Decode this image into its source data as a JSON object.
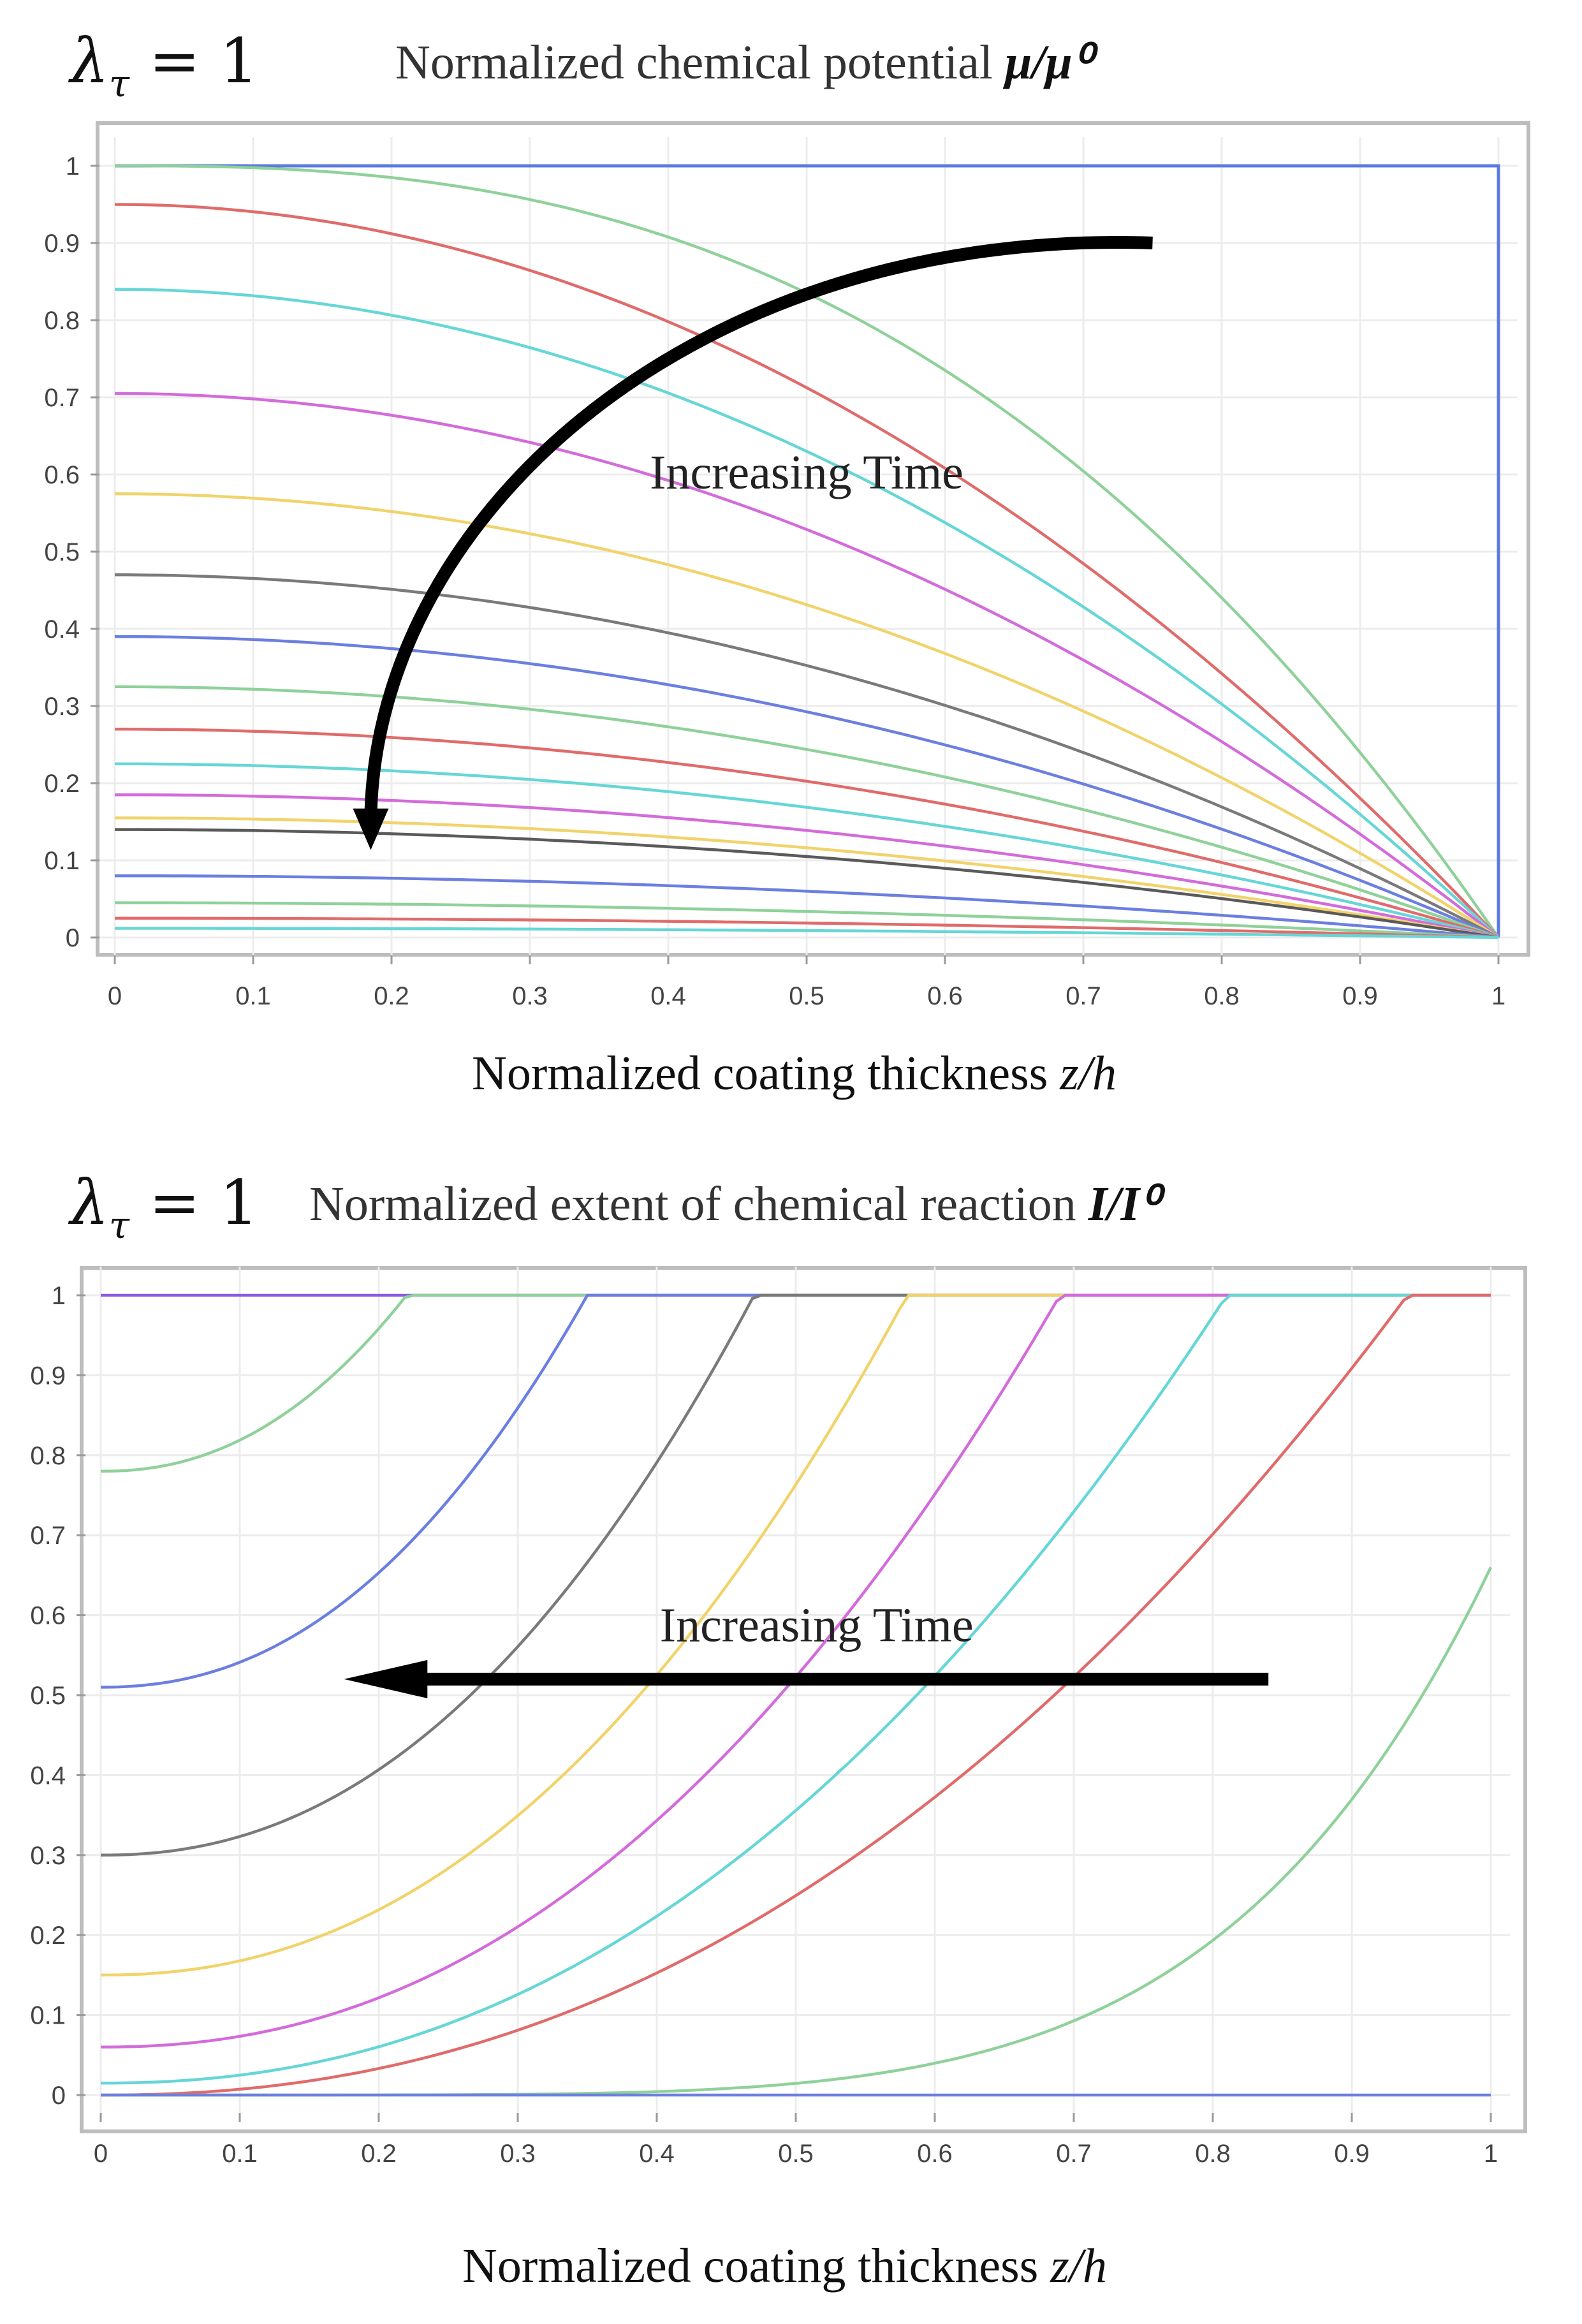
{
  "chart_data": [
    {
      "type": "line",
      "header": {
        "lambda_symbol": "λ",
        "lambda_subscript": "τ",
        "lambda_eq": "= 1"
      },
      "title_prefix": "Normalized chemical potential ",
      "title_symbol": "μ/μ⁰",
      "xlabel_prefix": "Normalized coating thickness ",
      "xlabel_symbol": "z/h",
      "ylabel": "",
      "xlim": [
        0,
        1
      ],
      "ylim": [
        0,
        1
      ],
      "xticks": [
        "0",
        "0.1",
        "0.2",
        "0.3",
        "0.4",
        "0.5",
        "0.6",
        "0.7",
        "0.8",
        "0.9",
        "1"
      ],
      "yticks": [
        "0",
        "0.1",
        "0.2",
        "0.3",
        "0.4",
        "0.5",
        "0.6",
        "0.7",
        "0.8",
        "0.9",
        "1"
      ],
      "grid": true,
      "annotation": "Increasing Time",
      "profile_shape": "mu(z) = mu(0) * (1 - z^2) for later curves; early curves are flat near z=0 and drop to 0 at z=1",
      "series": [
        {
          "name": "t0",
          "color": "#5b7be0",
          "start_value": 1.0,
          "end_value": 0.0,
          "kind": "step"
        },
        {
          "name": "t1",
          "color": "#8fd19a",
          "start_value": 1.0,
          "end_value": 0.0,
          "kind": "sharp"
        },
        {
          "name": "t2",
          "color": "#e06b6b",
          "start_value": 0.95,
          "end_value": 0.0,
          "kind": "parabolic"
        },
        {
          "name": "t3",
          "color": "#66d6d6",
          "start_value": 0.84,
          "end_value": 0.0,
          "kind": "parabolic"
        },
        {
          "name": "t4",
          "color": "#d36bdb",
          "start_value": 0.705,
          "end_value": 0.0,
          "kind": "parabolic"
        },
        {
          "name": "t5",
          "color": "#f1d36b",
          "start_value": 0.575,
          "end_value": 0.0,
          "kind": "parabolic"
        },
        {
          "name": "t6",
          "color": "#7a7a7a",
          "start_value": 0.47,
          "end_value": 0.0,
          "kind": "parabolic"
        },
        {
          "name": "t7",
          "color": "#6b7fe0",
          "start_value": 0.39,
          "end_value": 0.0,
          "kind": "parabolic"
        },
        {
          "name": "t8",
          "color": "#8fd19a",
          "start_value": 0.325,
          "end_value": 0.0,
          "kind": "parabolic"
        },
        {
          "name": "t9",
          "color": "#e06b6b",
          "start_value": 0.27,
          "end_value": 0.0,
          "kind": "parabolic"
        },
        {
          "name": "t10",
          "color": "#66d6d6",
          "start_value": 0.225,
          "end_value": 0.0,
          "kind": "parabolic"
        },
        {
          "name": "t11",
          "color": "#d36bdb",
          "start_value": 0.185,
          "end_value": 0.0,
          "kind": "parabolic"
        },
        {
          "name": "t12",
          "color": "#f1d36b",
          "start_value": 0.155,
          "end_value": 0.0,
          "kind": "parabolic"
        },
        {
          "name": "t13",
          "color": "#5a5a5a",
          "start_value": 0.14,
          "end_value": 0.0,
          "kind": "parabolic"
        },
        {
          "name": "t14",
          "color": "#6b7fe0",
          "start_value": 0.08,
          "end_value": 0.0,
          "kind": "parabolic"
        },
        {
          "name": "t15",
          "color": "#8fd19a",
          "start_value": 0.045,
          "end_value": 0.0,
          "kind": "parabolic"
        },
        {
          "name": "t16",
          "color": "#e06b6b",
          "start_value": 0.025,
          "end_value": 0.0,
          "kind": "parabolic"
        },
        {
          "name": "t17",
          "color": "#66d6d6",
          "start_value": 0.012,
          "end_value": 0.0,
          "kind": "parabolic"
        }
      ]
    },
    {
      "type": "line",
      "header": {
        "lambda_symbol": "λ",
        "lambda_subscript": "τ",
        "lambda_eq": "= 1"
      },
      "title_prefix": "Normalized extent of chemical reaction ",
      "title_symbol": "I/I⁰",
      "xlabel_prefix": "Normalized coating thickness ",
      "xlabel_symbol": "z/h",
      "ylabel": "",
      "xlim": [
        0,
        1
      ],
      "ylim": [
        0,
        1
      ],
      "xticks": [
        "0",
        "0.1",
        "0.2",
        "0.3",
        "0.4",
        "0.5",
        "0.6",
        "0.7",
        "0.8",
        "0.9",
        "1"
      ],
      "yticks": [
        "0",
        "0.1",
        "0.2",
        "0.3",
        "0.4",
        "0.5",
        "0.6",
        "0.7",
        "0.8",
        "0.9",
        "1"
      ],
      "grid": true,
      "annotation": "Increasing Time",
      "series": [
        {
          "name": "r0",
          "color": "#8a5be0",
          "flat_value": 1.0,
          "kind": "flat"
        },
        {
          "name": "r1",
          "color": "#8fd19a",
          "start_value": 0.78,
          "saturation_z": 0.22
        },
        {
          "name": "r2",
          "color": "#6b7fe0",
          "start_value": 0.51,
          "saturation_z": 0.35
        },
        {
          "name": "r3",
          "color": "#7a7a7a",
          "start_value": 0.3,
          "saturation_z": 0.47
        },
        {
          "name": "r4",
          "color": "#f1d36b",
          "start_value": 0.15,
          "saturation_z": 0.58
        },
        {
          "name": "r5",
          "color": "#d36bdb",
          "start_value": 0.06,
          "saturation_z": 0.69
        },
        {
          "name": "r6",
          "color": "#66d6d6",
          "start_value": 0.015,
          "saturation_z": 0.81
        },
        {
          "name": "r7",
          "color": "#e06b6b",
          "start_value": 0.0,
          "saturation_z": 0.94
        },
        {
          "name": "r8",
          "color": "#8fd19a",
          "start_value": 0.0,
          "end_value": 0.66,
          "kind": "rising"
        },
        {
          "name": "r9",
          "color": "#6b7fe0",
          "flat_value": 0.0,
          "kind": "flat"
        }
      ]
    }
  ]
}
